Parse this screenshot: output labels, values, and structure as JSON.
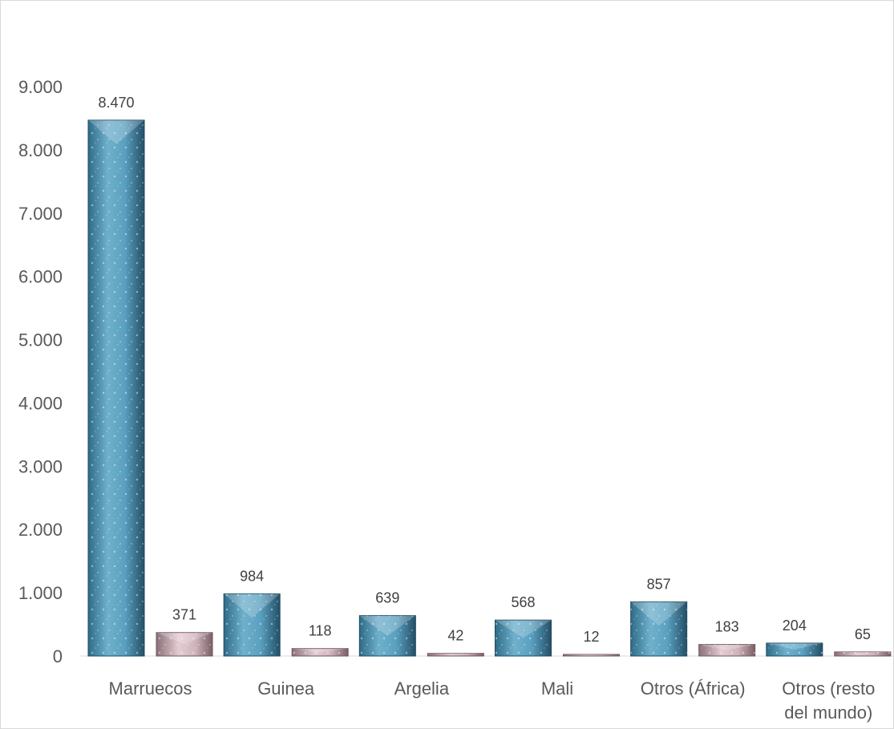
{
  "chart_data": {
    "type": "bar",
    "categories": [
      "Marruecos",
      "Guinea",
      "Argelia",
      "Mali",
      "Otros (África)",
      "Otros (resto del mundo)"
    ],
    "category_lines": [
      [
        "Marruecos"
      ],
      [
        "Guinea"
      ],
      [
        "Argelia"
      ],
      [
        "Mali"
      ],
      [
        "Otros (África)"
      ],
      [
        "Otros (resto",
        "del mundo)"
      ]
    ],
    "series": [
      {
        "values": [
          8470,
          984,
          639,
          568,
          857,
          204
        ],
        "labels": [
          "8.470",
          "984",
          "639",
          "568",
          "857",
          "204"
        ]
      },
      {
        "values": [
          371,
          118,
          42,
          12,
          183,
          65
        ],
        "labels": [
          "371",
          "118",
          "42",
          "12",
          "183",
          "65"
        ]
      }
    ],
    "yticks": [
      0,
      1000,
      2000,
      3000,
      4000,
      5000,
      6000,
      7000,
      8000,
      9000
    ],
    "ytick_labels": [
      "0",
      "1.000",
      "2.000",
      "3.000",
      "4.000",
      "5.000",
      "6.000",
      "7.000",
      "8.000",
      "9.000"
    ],
    "ylim": [
      0,
      9000
    ],
    "grid": false,
    "legend": "none",
    "colors": {
      "series1": "#4a8fb0",
      "series2": "#c9a7b0"
    }
  }
}
